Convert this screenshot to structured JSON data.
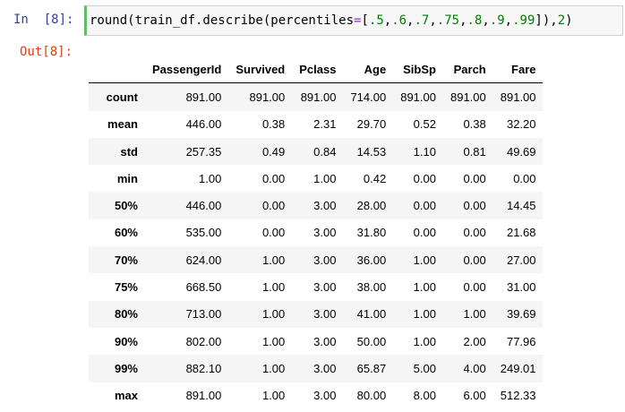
{
  "input_cell": {
    "prompt": "In  [8]:",
    "code": {
      "func_open": "round(train_df.describe(percentiles",
      "equals": "=",
      "list_open": "[",
      "p1": ".5",
      "p2": ".6",
      "p3": ".7",
      "p4": ".75",
      "p5": ".8",
      "p6": ".9",
      "p7": ".99",
      "comma": ",",
      "list_close": "]),",
      "digits": "2",
      "close": ")"
    }
  },
  "output_cell": {
    "prompt": "Out[8]:"
  },
  "table": {
    "columns": [
      "PassengerId",
      "Survived",
      "Pclass",
      "Age",
      "SibSp",
      "Parch",
      "Fare"
    ],
    "rows": [
      {
        "label": "count",
        "values": [
          "891.00",
          "891.00",
          "891.00",
          "714.00",
          "891.00",
          "891.00",
          "891.00"
        ]
      },
      {
        "label": "mean",
        "values": [
          "446.00",
          "0.38",
          "2.31",
          "29.70",
          "0.52",
          "0.38",
          "32.20"
        ]
      },
      {
        "label": "std",
        "values": [
          "257.35",
          "0.49",
          "0.84",
          "14.53",
          "1.10",
          "0.81",
          "49.69"
        ]
      },
      {
        "label": "min",
        "values": [
          "1.00",
          "0.00",
          "1.00",
          "0.42",
          "0.00",
          "0.00",
          "0.00"
        ]
      },
      {
        "label": "50%",
        "values": [
          "446.00",
          "0.00",
          "3.00",
          "28.00",
          "0.00",
          "0.00",
          "14.45"
        ]
      },
      {
        "label": "60%",
        "values": [
          "535.00",
          "0.00",
          "3.00",
          "31.80",
          "0.00",
          "0.00",
          "21.68"
        ]
      },
      {
        "label": "70%",
        "values": [
          "624.00",
          "1.00",
          "3.00",
          "36.00",
          "1.00",
          "0.00",
          "27.00"
        ]
      },
      {
        "label": "75%",
        "values": [
          "668.50",
          "1.00",
          "3.00",
          "38.00",
          "1.00",
          "0.00",
          "31.00"
        ]
      },
      {
        "label": "80%",
        "values": [
          "713.00",
          "1.00",
          "3.00",
          "41.00",
          "1.00",
          "1.00",
          "39.69"
        ]
      },
      {
        "label": "90%",
        "values": [
          "802.00",
          "1.00",
          "3.00",
          "50.00",
          "1.00",
          "2.00",
          "77.96"
        ]
      },
      {
        "label": "99%",
        "values": [
          "882.10",
          "1.00",
          "3.00",
          "65.87",
          "5.00",
          "4.00",
          "249.01"
        ]
      },
      {
        "label": "max",
        "values": [
          "891.00",
          "1.00",
          "3.00",
          "80.00",
          "8.00",
          "6.00",
          "512.33"
        ]
      }
    ]
  }
}
